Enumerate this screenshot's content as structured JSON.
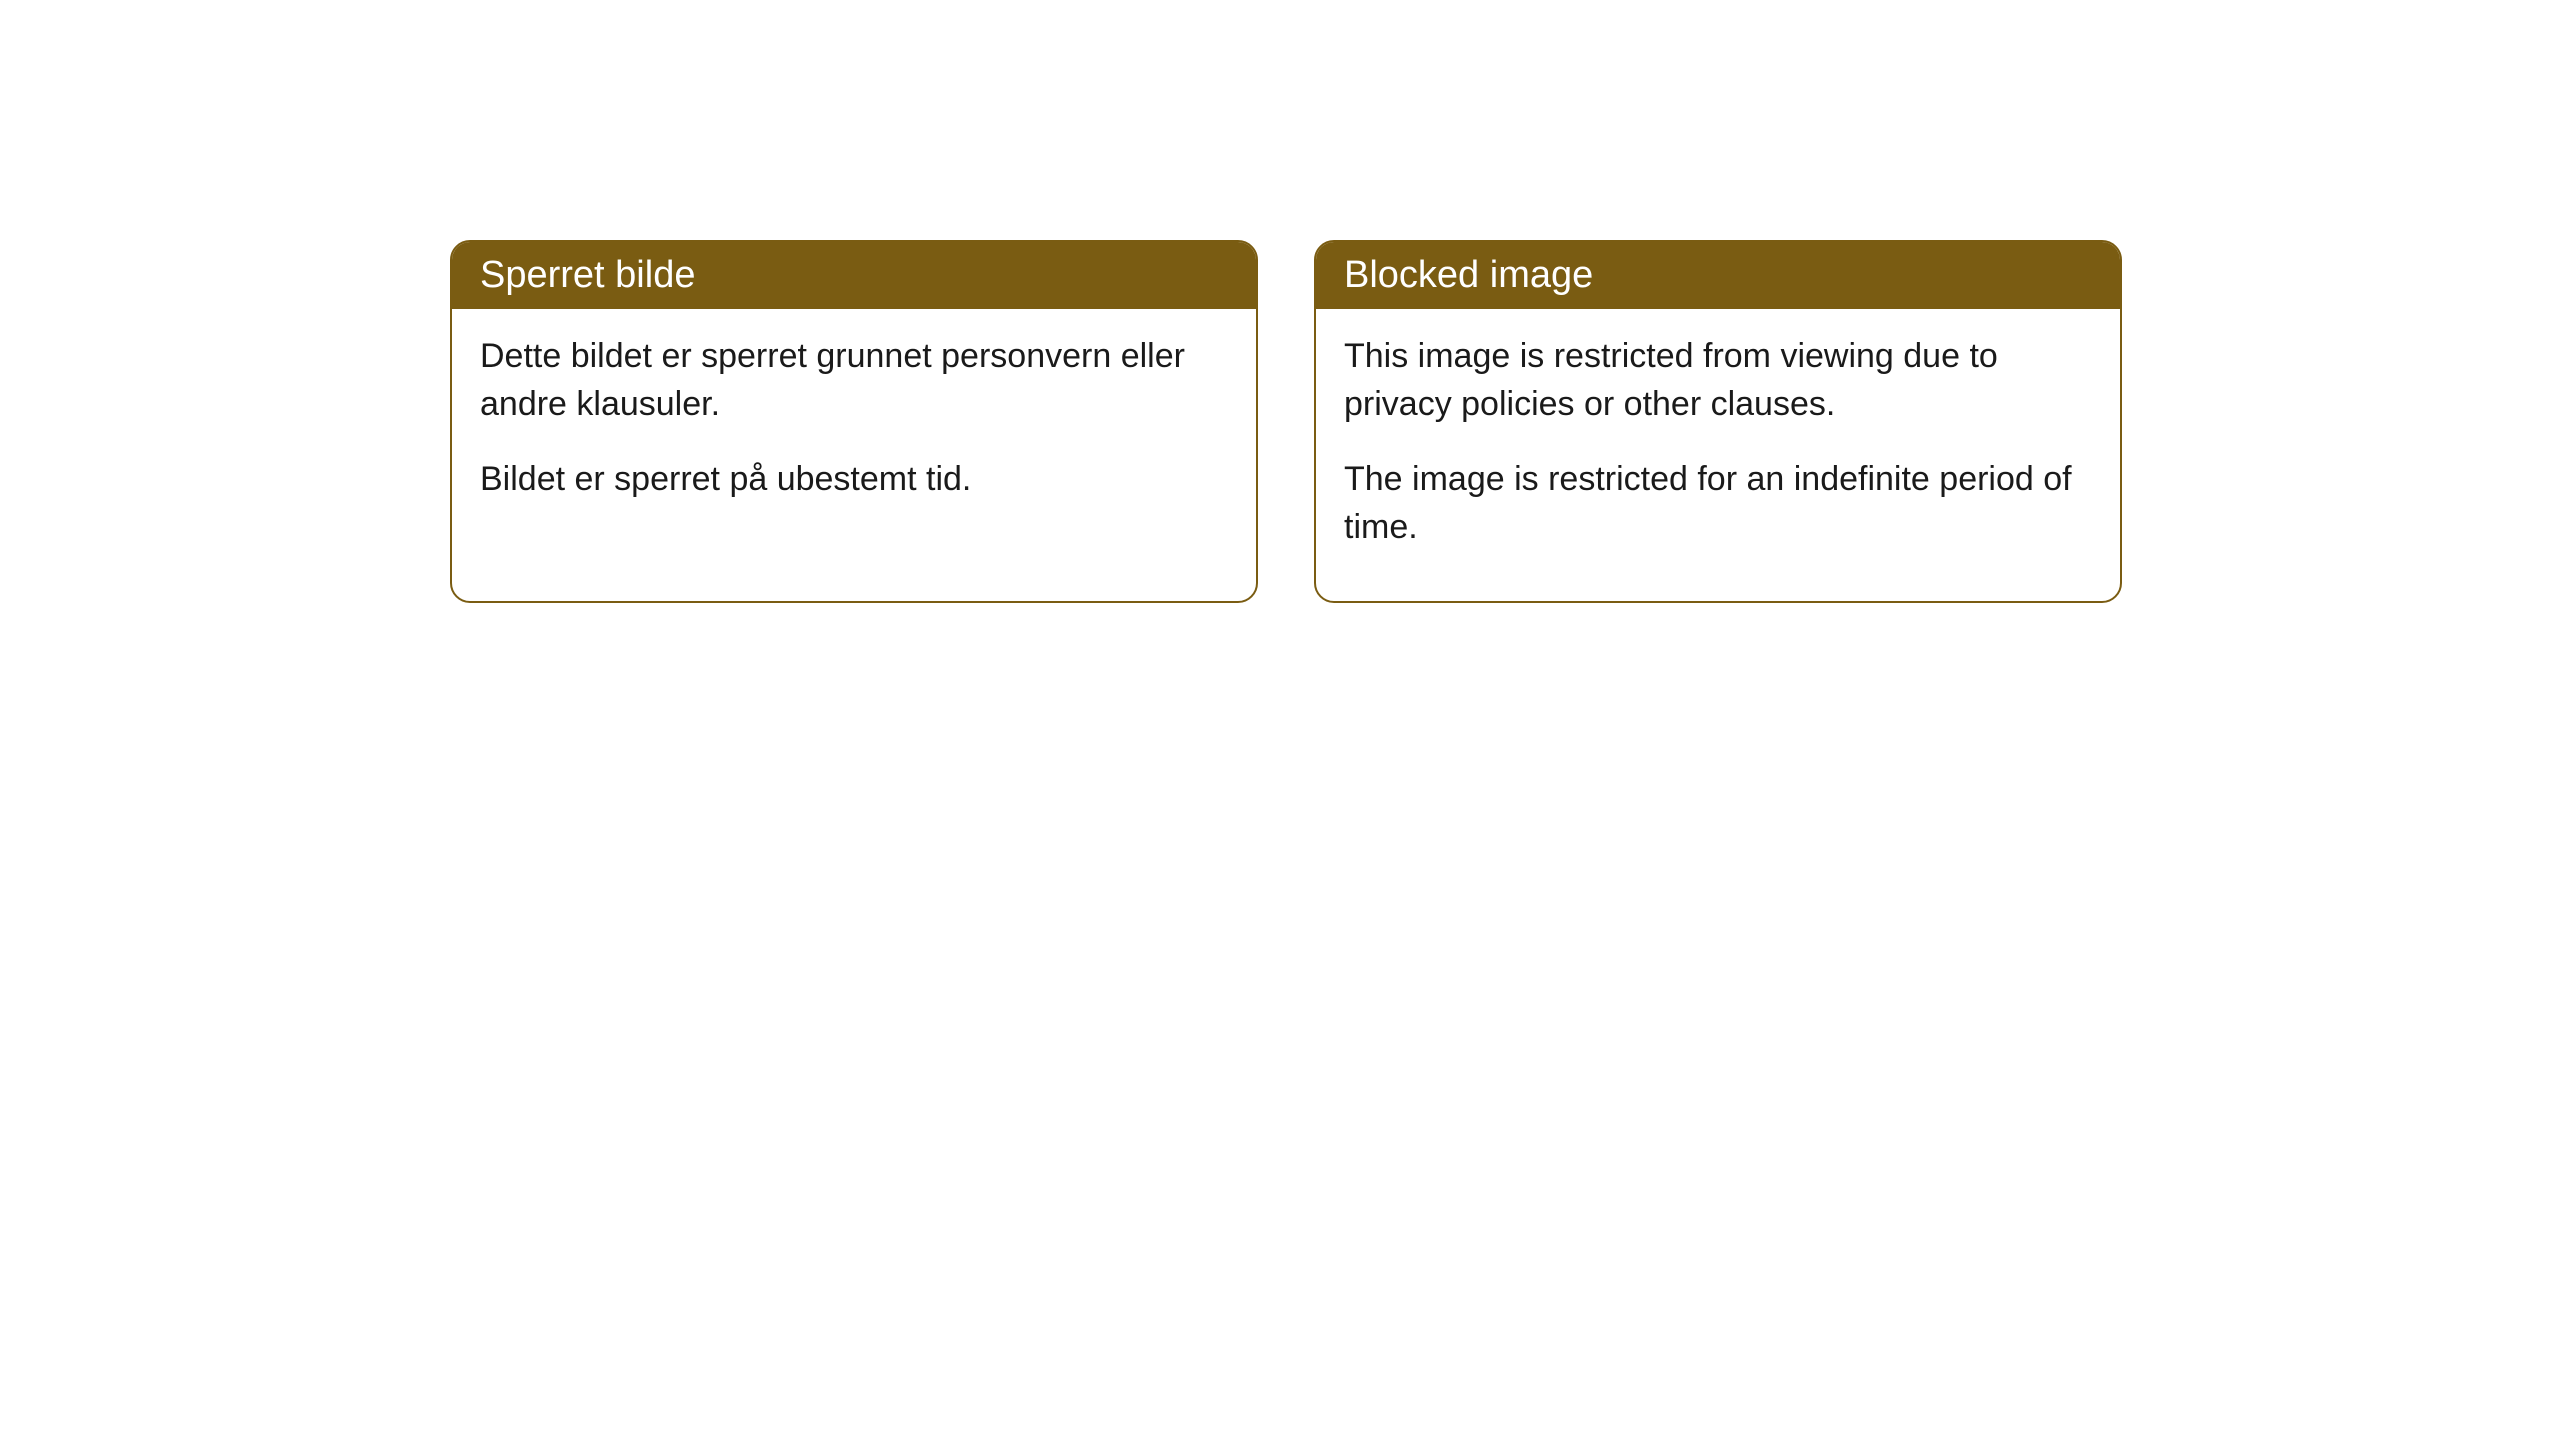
{
  "cards": [
    {
      "title": "Sperret bilde",
      "paragraph1": "Dette bildet er sperret grunnet personvern eller andre klausuler.",
      "paragraph2": "Bildet er sperret på ubestemt tid."
    },
    {
      "title": "Blocked image",
      "paragraph1": "This image is restricted from viewing due to privacy policies or other clauses.",
      "paragraph2": "The image is restricted for an indefinite period of time."
    }
  ],
  "styling": {
    "header_background": "#7a5c12",
    "header_text_color": "#ffffff",
    "border_color": "#7a5c12",
    "body_background": "#ffffff",
    "body_text_color": "#1a1a1a",
    "border_radius": 20,
    "title_fontsize": 38,
    "body_fontsize": 34
  }
}
